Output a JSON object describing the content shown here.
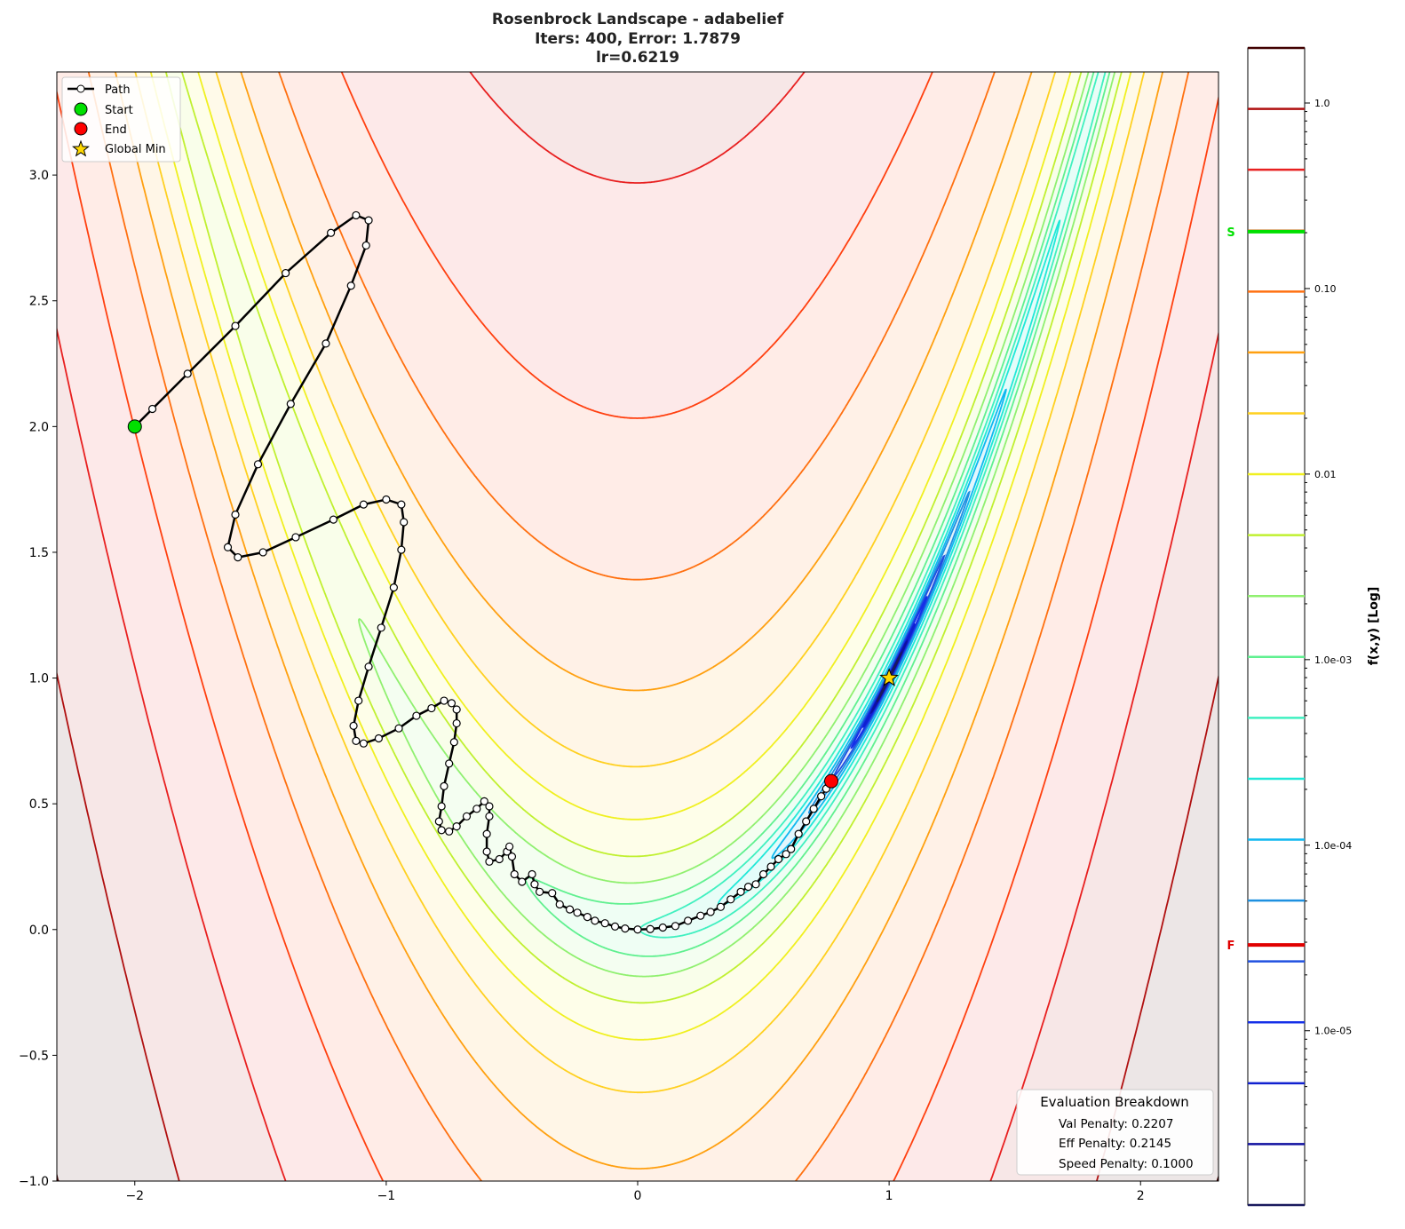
{
  "chart_data": {
    "type": "contour",
    "title_lines": [
      "Rosenbrock Landscape - adabelief",
      "Iters: 400, Error: 1.7879",
      "lr=0.6219"
    ],
    "function": "rosenbrock",
    "xlim": [
      -2.31,
      2.31
    ],
    "ylim": [
      -1.0,
      3.41
    ],
    "x_ticks": [
      -2,
      -1,
      0,
      1,
      2
    ],
    "x_tick_labels": [
      "−2",
      "−1",
      "0",
      "1",
      "2"
    ],
    "y_ticks": [
      -1.0,
      -0.5,
      0.0,
      0.5,
      1.0,
      1.5,
      2.0,
      2.5,
      3.0
    ],
    "y_tick_labels": [
      "−1.0",
      "−0.5",
      "0.0",
      "0.5",
      "1.0",
      "1.5",
      "2.0",
      "2.5",
      "3.0"
    ],
    "colorbar": {
      "label": "f(x,y) [Log]",
      "scale": "log",
      "range": [
        1.15e-06,
        1.98
      ],
      "ticks": [
        1.0,
        0.1,
        0.01,
        0.001,
        0.0001,
        1e-05
      ],
      "tick_labels": [
        "1.0",
        "0.10",
        "0.01",
        "1.0e-03",
        "1.0e-04",
        "1.0e-05"
      ],
      "start_marker": {
        "label": "S",
        "value": 0.2025,
        "color": "#00e000"
      },
      "final_marker": {
        "label": "F",
        "value": 2.9e-05,
        "color": "#e00000"
      }
    },
    "levels_count": 20,
    "level_colors": [
      "#1a1a5e",
      "#1010a0",
      "#1020d0",
      "#1530e8",
      "#2050e0",
      "#1e90e0",
      "#10b8f0",
      "#20e8d8",
      "#40f0c0",
      "#60f090",
      "#90f070",
      "#c0f030",
      "#f0f020",
      "#ffd020",
      "#ffa010",
      "#ff7010",
      "#ff4010",
      "#e82020",
      "#b01010",
      "#400000"
    ],
    "path": [
      [
        -2.0,
        2.0
      ],
      [
        -1.93,
        2.07
      ],
      [
        -1.79,
        2.21
      ],
      [
        -1.6,
        2.4
      ],
      [
        -1.4,
        2.61
      ],
      [
        -1.22,
        2.77
      ],
      [
        -1.12,
        2.84
      ],
      [
        -1.07,
        2.82
      ],
      [
        -1.08,
        2.72
      ],
      [
        -1.14,
        2.56
      ],
      [
        -1.24,
        2.33
      ],
      [
        -1.38,
        2.09
      ],
      [
        -1.51,
        1.85
      ],
      [
        -1.6,
        1.65
      ],
      [
        -1.63,
        1.52
      ],
      [
        -1.59,
        1.48
      ],
      [
        -1.49,
        1.5
      ],
      [
        -1.36,
        1.56
      ],
      [
        -1.21,
        1.63
      ],
      [
        -1.09,
        1.69
      ],
      [
        -1.0,
        1.71
      ],
      [
        -0.94,
        1.69
      ],
      [
        -0.93,
        1.62
      ],
      [
        -0.94,
        1.51
      ],
      [
        -0.97,
        1.36
      ],
      [
        -1.02,
        1.2
      ],
      [
        -1.07,
        1.045
      ],
      [
        -1.11,
        0.91
      ],
      [
        -1.13,
        0.81
      ],
      [
        -1.12,
        0.75
      ],
      [
        -1.09,
        0.74
      ],
      [
        -1.03,
        0.76
      ],
      [
        -0.95,
        0.8
      ],
      [
        -0.88,
        0.85
      ],
      [
        -0.82,
        0.88
      ],
      [
        -0.77,
        0.91
      ],
      [
        -0.74,
        0.9
      ],
      [
        -0.72,
        0.875
      ],
      [
        -0.72,
        0.82
      ],
      [
        -0.73,
        0.745
      ],
      [
        -0.75,
        0.66
      ],
      [
        -0.77,
        0.57
      ],
      [
        -0.78,
        0.49
      ],
      [
        -0.79,
        0.43
      ],
      [
        -0.78,
        0.395
      ],
      [
        -0.75,
        0.39
      ],
      [
        -0.72,
        0.41
      ],
      [
        -0.68,
        0.45
      ],
      [
        -0.64,
        0.48
      ],
      [
        -0.61,
        0.51
      ],
      [
        -0.59,
        0.49
      ],
      [
        -0.59,
        0.45
      ],
      [
        -0.6,
        0.38
      ],
      [
        -0.6,
        0.31
      ],
      [
        -0.59,
        0.27
      ],
      [
        -0.55,
        0.28
      ],
      [
        -0.52,
        0.31
      ],
      [
        -0.51,
        0.33
      ],
      [
        -0.5,
        0.29
      ],
      [
        -0.49,
        0.22
      ],
      [
        -0.46,
        0.19
      ],
      [
        -0.42,
        0.22
      ],
      [
        -0.41,
        0.18
      ],
      [
        -0.39,
        0.15
      ],
      [
        -0.34,
        0.145
      ],
      [
        -0.31,
        0.1
      ],
      [
        -0.27,
        0.08
      ],
      [
        -0.24,
        0.067
      ],
      [
        -0.2,
        0.05
      ],
      [
        -0.17,
        0.035
      ],
      [
        -0.13,
        0.025
      ],
      [
        -0.09,
        0.012
      ],
      [
        -0.05,
        0.004
      ],
      [
        0.0,
        0.0
      ],
      [
        0.05,
        0.002
      ],
      [
        0.1,
        0.008
      ],
      [
        0.15,
        0.014
      ],
      [
        0.2,
        0.035
      ],
      [
        0.25,
        0.055
      ],
      [
        0.29,
        0.07
      ],
      [
        0.33,
        0.09
      ],
      [
        0.37,
        0.12
      ],
      [
        0.41,
        0.15
      ],
      [
        0.44,
        0.17
      ],
      [
        0.47,
        0.18
      ],
      [
        0.5,
        0.22
      ],
      [
        0.53,
        0.25
      ],
      [
        0.56,
        0.28
      ],
      [
        0.59,
        0.3
      ],
      [
        0.61,
        0.32
      ],
      [
        0.64,
        0.38
      ],
      [
        0.67,
        0.43
      ],
      [
        0.7,
        0.48
      ],
      [
        0.73,
        0.53
      ],
      [
        0.75,
        0.56
      ],
      [
        0.77,
        0.59
      ]
    ],
    "start": [
      -2.0,
      2.0
    ],
    "end": [
      0.77,
      0.59
    ],
    "global_min": [
      1.0,
      1.0
    ],
    "legend": {
      "position": "top-left",
      "entries": [
        "Path",
        "Start",
        "End",
        "Global Min"
      ]
    },
    "colors": {
      "path": "#000000",
      "start": "#00e000",
      "end": "#ff0000",
      "global_min": "#ffd700"
    },
    "annotation": {
      "position": "bottom-right",
      "title": "Evaluation Breakdown",
      "lines": [
        "Val Penalty: 0.2207",
        "Eff Penalty: 0.2145",
        "Speed Penalty: 0.1000"
      ]
    }
  }
}
